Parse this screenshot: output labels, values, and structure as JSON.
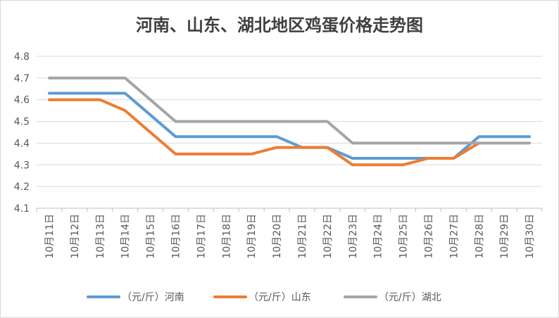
{
  "chart_data": {
    "type": "line",
    "title": "河南、山东、湖北地区鸡蛋价格走势图",
    "categories": [
      "10月11日",
      "10月12日",
      "10月13日",
      "10月14日",
      "10月15日",
      "10月16日",
      "10月17日",
      "10月18日",
      "10月19日",
      "10月20日",
      "10月21日",
      "10月22日",
      "10月23日",
      "10月24日",
      "10月25日",
      "10月26日",
      "10月27日",
      "10月28日",
      "10月29日",
      "10月30日"
    ],
    "ylim": [
      4.1,
      4.8
    ],
    "yticks": [
      "4.1",
      "4.2",
      "4.3",
      "4.4",
      "4.5",
      "4.6",
      "4.7",
      "4.8"
    ],
    "grid": true,
    "legend_position": "bottom",
    "series": [
      {
        "name": "（元/斤）河南",
        "color": "#5b9bd5",
        "values": [
          4.63,
          4.63,
          4.63,
          4.63,
          4.53,
          4.43,
          4.43,
          4.43,
          4.43,
          4.43,
          4.38,
          4.38,
          4.33,
          4.33,
          4.33,
          4.33,
          4.33,
          4.43,
          4.43,
          4.43
        ]
      },
      {
        "name": "（元/斤）山东",
        "color": "#ed7d31",
        "values": [
          4.6,
          4.6,
          4.6,
          4.55,
          4.45,
          4.35,
          4.35,
          4.35,
          4.35,
          4.38,
          4.38,
          4.38,
          4.3,
          4.3,
          4.3,
          4.33,
          4.33,
          4.4,
          null,
          null
        ]
      },
      {
        "name": "（元/斤）湖北",
        "color": "#a5a5a5",
        "values": [
          4.7,
          4.7,
          4.7,
          4.7,
          4.6,
          4.5,
          4.5,
          4.5,
          4.5,
          4.5,
          4.5,
          4.5,
          4.4,
          4.4,
          4.4,
          4.4,
          4.4,
          4.4,
          4.4,
          4.4
        ]
      }
    ]
  }
}
